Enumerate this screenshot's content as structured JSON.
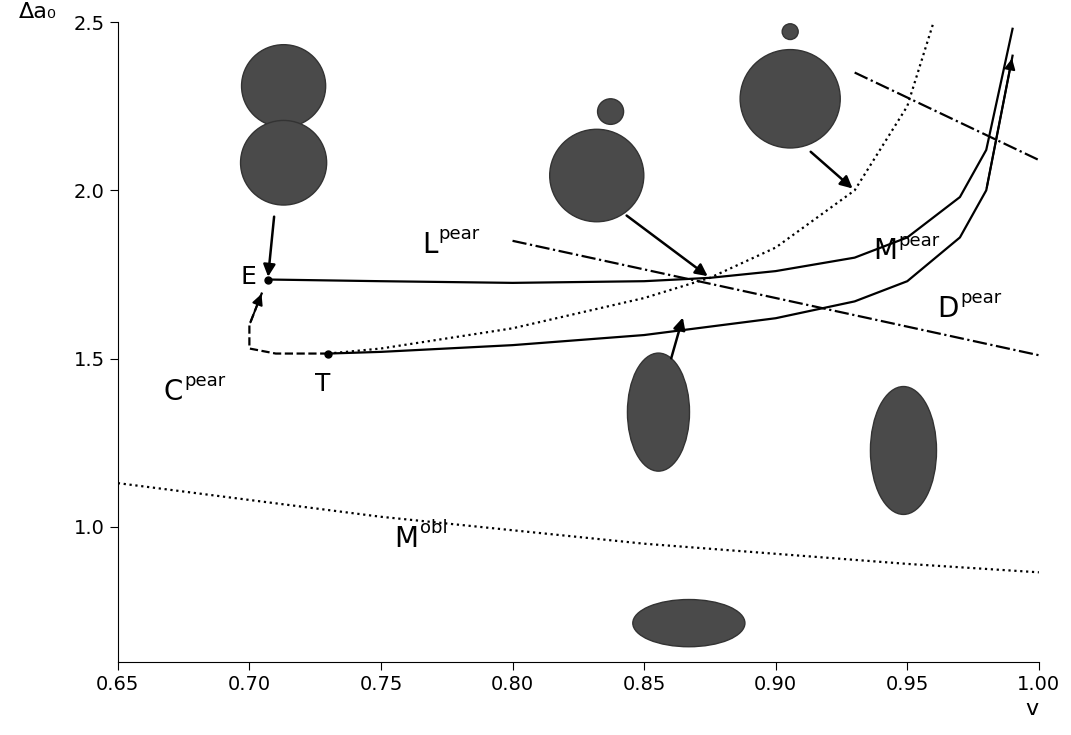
{
  "chart_data": {
    "type": "line",
    "x_label": "v",
    "y_label": "Δa₀",
    "xlim": [
      0.65,
      1.0
    ],
    "ylim": [
      0.6,
      2.5
    ],
    "xticks": [
      0.65,
      {
        "value": 0.7,
        "label": "0.70"
      },
      0.75,
      {
        "value": 0.8,
        "label": "0.80"
      },
      0.85,
      {
        "value": 0.9,
        "label": "0.90"
      },
      0.95,
      {
        "value": 1.0,
        "label": "1.00"
      }
    ],
    "yticks": [
      1.0,
      1.5,
      2.0,
      2.5
    ],
    "grid": false,
    "series": [
      {
        "x": [
          0.707,
          0.75,
          0.8,
          0.85,
          0.875,
          0.9,
          0.93,
          0.95,
          0.97,
          0.98,
          0.99
        ],
        "values": [
          1.735,
          1.73,
          1.725,
          1.73,
          1.74,
          1.76,
          1.8,
          1.86,
          1.98,
          2.12,
          2.48
        ],
        "color": "#000000",
        "line_style": "solid"
      },
      {
        "x": [
          0.73,
          0.75,
          0.8,
          0.85,
          0.9,
          0.93,
          0.95,
          0.97,
          0.98,
          0.99
        ],
        "values": [
          1.515,
          1.52,
          1.54,
          1.57,
          1.62,
          1.67,
          1.73,
          1.86,
          2.0,
          2.4
        ],
        "color": "#000000",
        "line_style": "solid"
      },
      {
        "x": [
          0.73,
          0.75,
          0.8,
          0.85,
          0.875,
          0.9,
          0.93,
          0.95,
          0.96
        ],
        "values": [
          1.515,
          1.53,
          1.59,
          1.68,
          1.74,
          1.83,
          2.0,
          2.25,
          2.5
        ],
        "color": "#000000",
        "line_style": "dotted"
      },
      {
        "x": [
          0.65,
          0.7,
          0.75,
          0.8,
          0.85,
          0.9,
          0.95,
          1.0
        ],
        "values": [
          1.13,
          1.08,
          1.03,
          0.99,
          0.95,
          0.92,
          0.89,
          0.865
        ],
        "color": "#000000",
        "line_style": "dotted"
      },
      {
        "x": [
          0.73,
          0.71,
          0.7,
          0.7,
          0.705
        ],
        "values": [
          1.515,
          1.515,
          1.53,
          1.6,
          1.7
        ],
        "color": "#000000",
        "line_style": "dashed"
      },
      {
        "x": [
          0.8,
          1.0
        ],
        "values": [
          1.85,
          1.51
        ],
        "color": "#000000",
        "line_style": "dashdot"
      },
      {
        "x": [
          0.93,
          1.0
        ],
        "values": [
          2.35,
          2.09
        ],
        "color": "#000000",
        "line_style": "dashdot"
      }
    ],
    "points": [
      {
        "label": "E",
        "x": 0.707,
        "y": 1.735
      },
      {
        "label": "T",
        "x": 0.73,
        "y": 1.515
      }
    ],
    "annotations": [
      {
        "text": "L",
        "superscript": "pear"
      },
      {
        "text": "C",
        "superscript": "pear"
      },
      {
        "text": "D",
        "superscript": "pear"
      },
      {
        "text": "M",
        "superscript": "pear"
      },
      {
        "text": "M",
        "superscript": "obl"
      }
    ]
  }
}
